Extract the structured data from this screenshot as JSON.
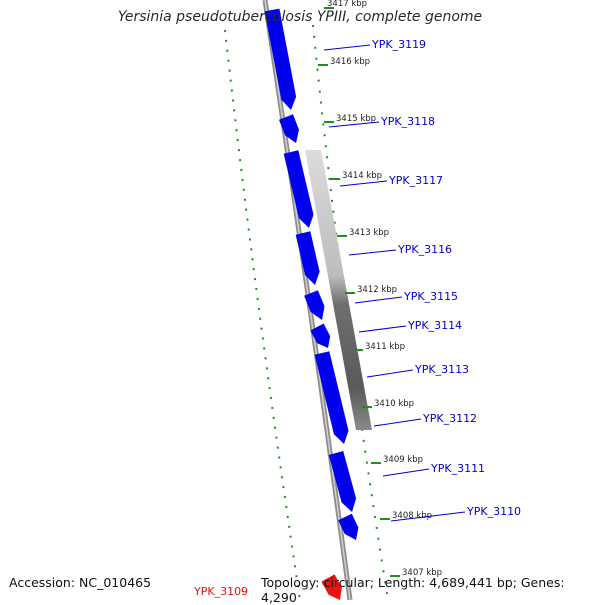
{
  "title": "Yersinia pseudotuberculosis YPIII, complete genome",
  "accession": "Accession: NC_010465",
  "footer": "Topology: circular; Length: 4,689,441 bp; Genes: 4,290",
  "colors": {
    "gene_forward": "#0000ee",
    "gene_highlight": "#ee1111",
    "gene_label": "#0000cc",
    "gene_label_highlight": "#dd1111",
    "backbone": "#8c8c8c",
    "dotted_track": "#228b22"
  },
  "ticks": [
    {
      "label": "3417 kbp"
    },
    {
      "label": "3416 kbp"
    },
    {
      "label": "3415 kbp"
    },
    {
      "label": "3414 kbp"
    },
    {
      "label": "3413 kbp"
    },
    {
      "label": "3412 kbp"
    },
    {
      "label": "3411 kbp"
    },
    {
      "label": "3410 kbp"
    },
    {
      "label": "3409 kbp"
    },
    {
      "label": "3408 kbp"
    },
    {
      "label": "3407 kbp"
    }
  ],
  "genes": [
    {
      "label": "YPK_3119",
      "highlight": false
    },
    {
      "label": "YPK_3118",
      "highlight": false
    },
    {
      "label": "YPK_3117",
      "highlight": false
    },
    {
      "label": "YPK_3116",
      "highlight": false
    },
    {
      "label": "YPK_3115",
      "highlight": false
    },
    {
      "label": "YPK_3114",
      "highlight": false
    },
    {
      "label": "YPK_3113",
      "highlight": false
    },
    {
      "label": "YPK_3112",
      "highlight": false
    },
    {
      "label": "YPK_3111",
      "highlight": false
    },
    {
      "label": "YPK_3110",
      "highlight": false
    },
    {
      "label": "YPK_3109",
      "highlight": true
    }
  ]
}
